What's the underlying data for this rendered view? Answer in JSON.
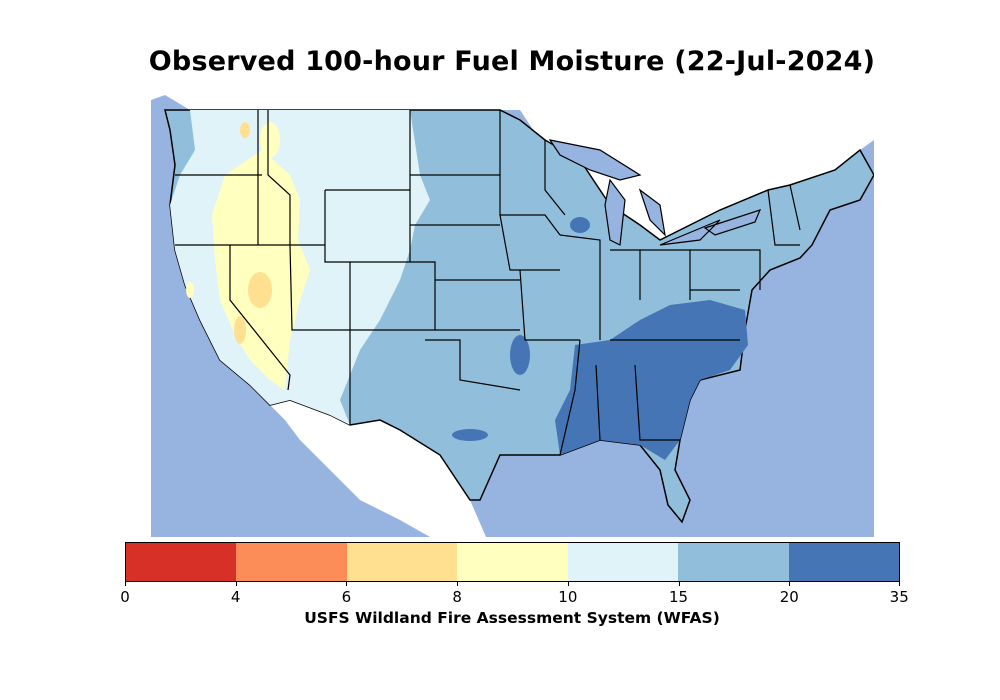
{
  "title": "Observed 100-hour Fuel Moisture (22-Jul-2024)",
  "colorbar": {
    "label": "USFS Wildland Fire Assessment System (WFAS)",
    "ticks": [
      "0",
      "4",
      "6",
      "8",
      "10",
      "15",
      "20",
      "35"
    ],
    "classes": [
      {
        "range": "0-4",
        "color": "#d73027"
      },
      {
        "range": "4-6",
        "color": "#fc8d59"
      },
      {
        "range": "6-8",
        "color": "#fee090"
      },
      {
        "range": "8-10",
        "color": "#ffffbf"
      },
      {
        "range": "10-15",
        "color": "#e0f3f8"
      },
      {
        "range": "15-20",
        "color": "#91bfdb"
      },
      {
        "range": "20-35",
        "color": "#4575b4"
      }
    ]
  },
  "map": {
    "region": "Contiguous United States",
    "water_color": "#97b3e0",
    "land_outside_color": "#ffffff",
    "border_color": "#000000"
  }
}
